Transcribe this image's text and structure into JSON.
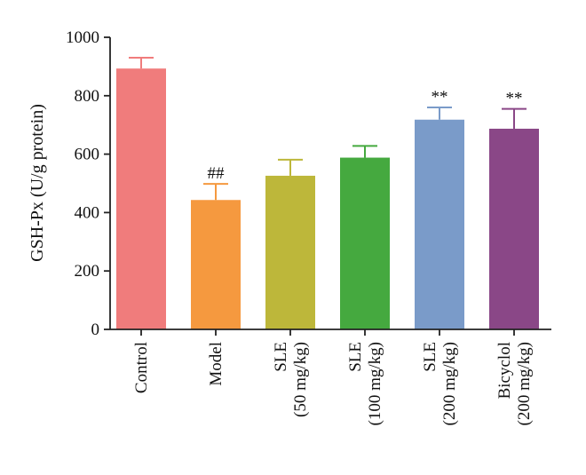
{
  "chart_data": {
    "type": "bar",
    "ylabel": "GSH-Px (U/g protein)",
    "ylim": [
      0,
      1000
    ],
    "yticks": [
      0,
      200,
      400,
      600,
      800,
      1000
    ],
    "categories": [
      [
        "Control"
      ],
      [
        "Model"
      ],
      [
        "SLE",
        "(50 mg/kg)"
      ],
      [
        "SLE",
        "(100 mg/kg)"
      ],
      [
        "SLE",
        "(200 mg/kg)"
      ],
      [
        "Bicyclol",
        "(200 mg/kg)"
      ]
    ],
    "values": [
      893,
      443,
      526,
      588,
      718,
      687
    ],
    "errors": [
      37,
      55,
      55,
      40,
      42,
      68
    ],
    "annotations": [
      "",
      "##",
      "",
      "",
      "**",
      "**"
    ],
    "colors": [
      "#f07c7c",
      "#f5993f",
      "#bdb73a",
      "#45a93f",
      "#7a9bc9",
      "#8a4787"
    ],
    "grid": false
  }
}
